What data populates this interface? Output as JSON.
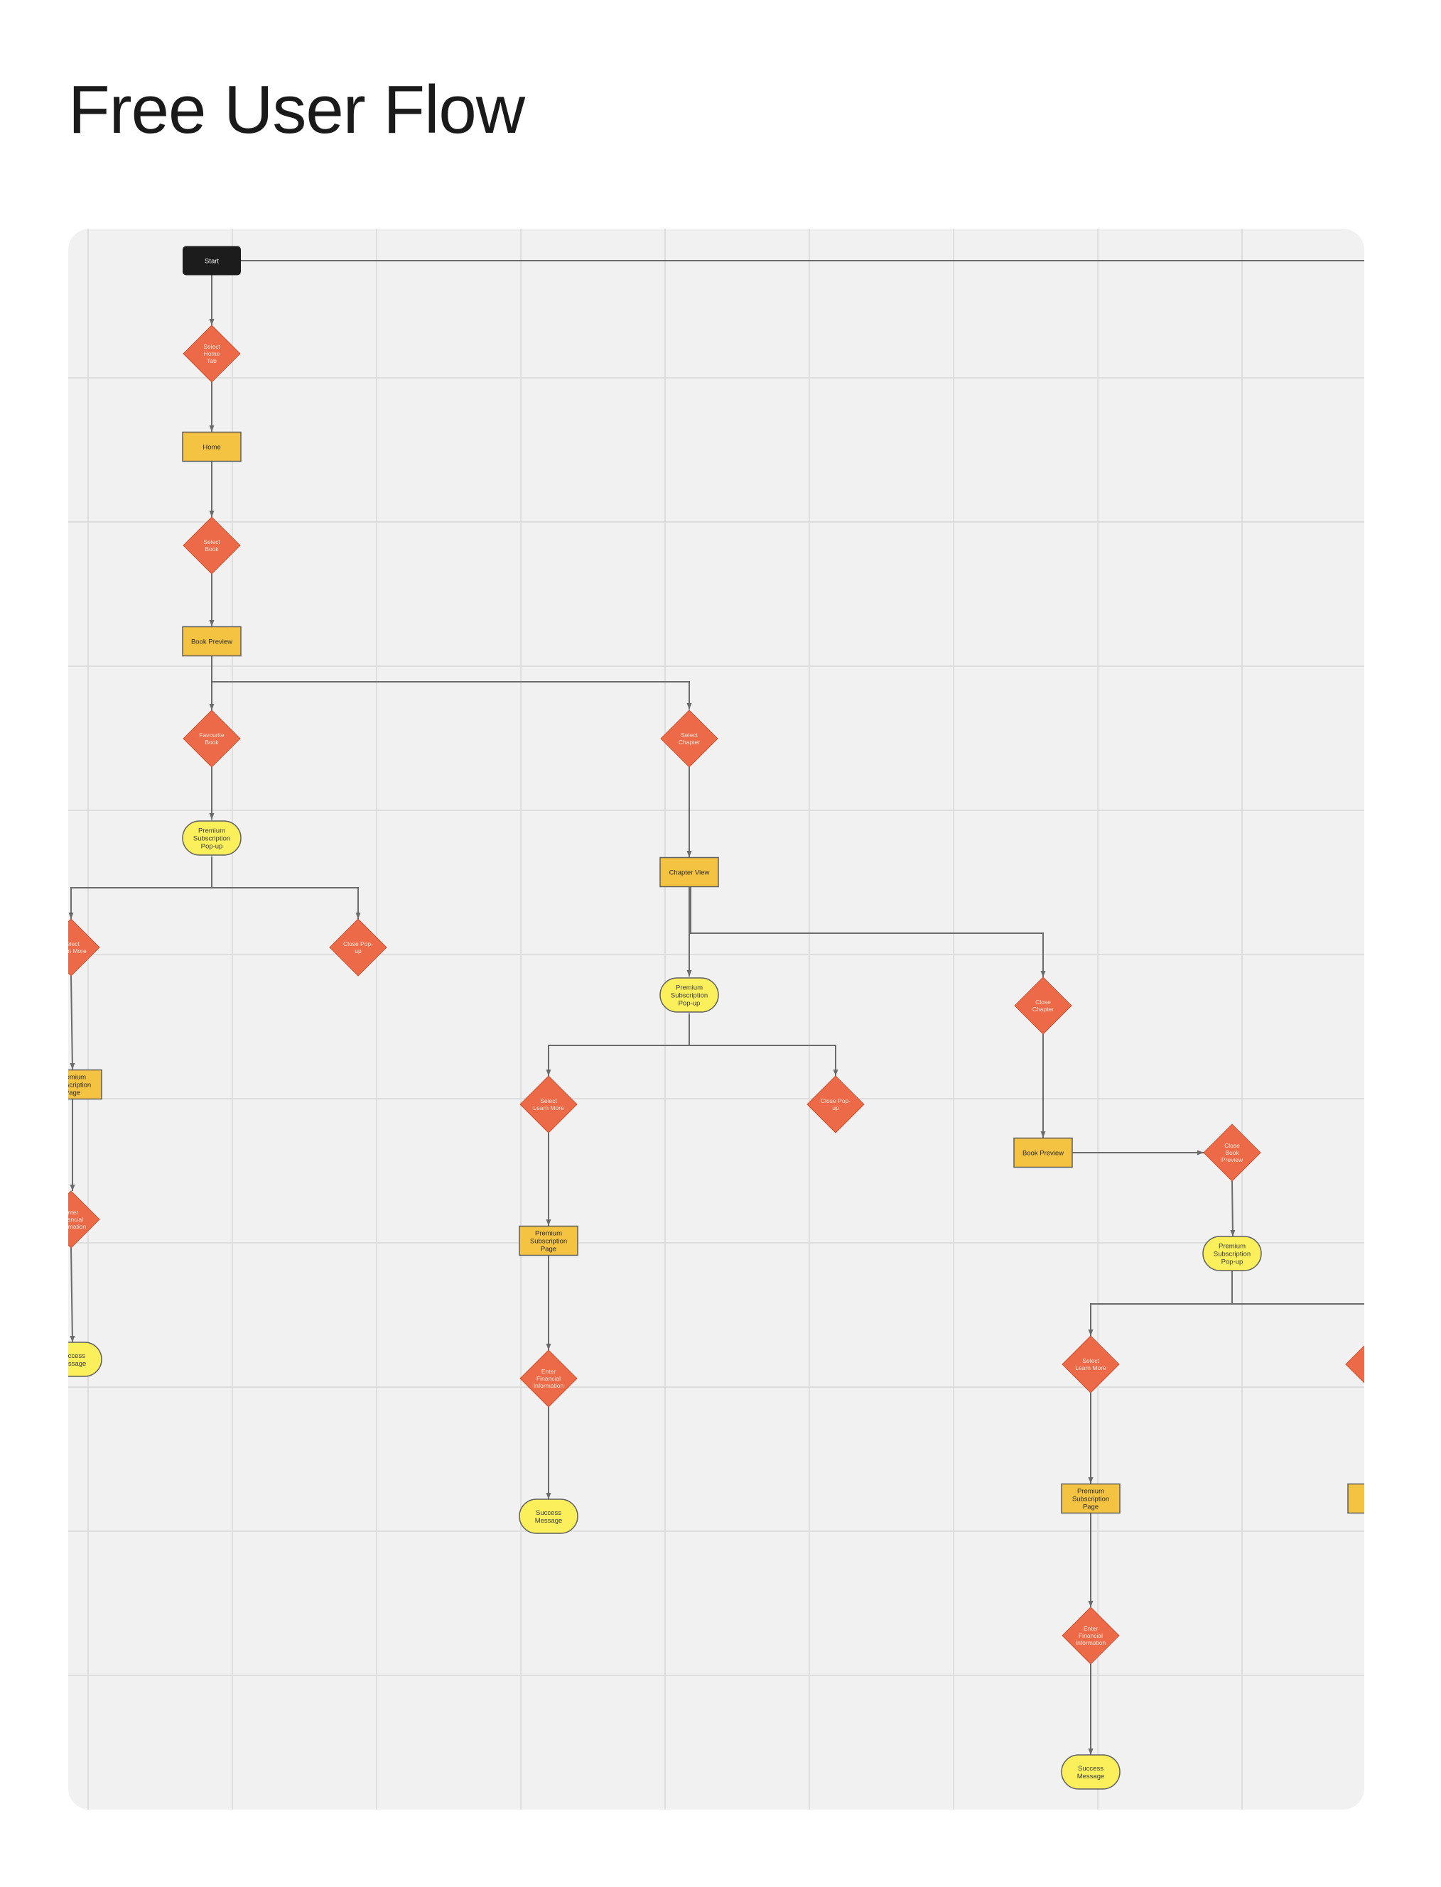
{
  "page": {
    "title": "Free User Flow"
  },
  "diagram": {
    "nodes": [
      {
        "id": "start",
        "shape": "terminal-dark",
        "label": "Start"
      },
      {
        "id": "select-home-tab",
        "shape": "decision",
        "label": "Select\nHome\nTab"
      },
      {
        "id": "home",
        "shape": "process",
        "label": "Home"
      },
      {
        "id": "select-book",
        "shape": "decision",
        "label": "Select\nBook"
      },
      {
        "id": "book-preview-1",
        "shape": "process",
        "label": "Book Preview"
      },
      {
        "id": "favourite-book",
        "shape": "decision",
        "label": "Favourite\nBook"
      },
      {
        "id": "select-chapter",
        "shape": "decision",
        "label": "Select\nChapter"
      },
      {
        "id": "popup-1",
        "shape": "terminal",
        "label": "Premium\nSubscription\nPop-up"
      },
      {
        "id": "chapter-view",
        "shape": "process",
        "label": "Chapter View"
      },
      {
        "id": "select-learn-more-1",
        "shape": "decision",
        "label": "Select\nLearn More"
      },
      {
        "id": "close-popup-1",
        "shape": "decision",
        "label": "Close Pop-\nup"
      },
      {
        "id": "popup-2",
        "shape": "terminal",
        "label": "Premium\nSubscription\nPop-up"
      },
      {
        "id": "close-chapter",
        "shape": "decision",
        "label": "Close\nChapter"
      },
      {
        "id": "sub-page-1",
        "shape": "process",
        "label": "Premium\nSubscription\nPage"
      },
      {
        "id": "select-learn-more-2",
        "shape": "decision",
        "label": "Select\nLearn More"
      },
      {
        "id": "close-popup-2",
        "shape": "decision",
        "label": "Close Pop-\nup"
      },
      {
        "id": "book-preview-2",
        "shape": "process",
        "label": "Book Preview"
      },
      {
        "id": "close-book-preview",
        "shape": "decision",
        "label": "Close\nBook\nPreview"
      },
      {
        "id": "enter-info-1",
        "shape": "decision",
        "label": "Enter\nFinancial\nInformation"
      },
      {
        "id": "sub-page-2",
        "shape": "process",
        "label": "Premium\nSubscription\nPage"
      },
      {
        "id": "popup-3",
        "shape": "terminal",
        "label": "Premium\nSubscription\nPop-up"
      },
      {
        "id": "success-1",
        "shape": "terminal",
        "label": "Success\nMessage"
      },
      {
        "id": "select-learn-more-3",
        "shape": "decision",
        "label": "Select\nLearn More"
      },
      {
        "id": "decision-offscreen",
        "shape": "decision",
        "label": ""
      },
      {
        "id": "enter-info-2",
        "shape": "decision",
        "label": "Enter\nFinancial\nInformation"
      },
      {
        "id": "success-2",
        "shape": "terminal",
        "label": "Success\nMessage"
      },
      {
        "id": "sub-page-3",
        "shape": "process",
        "label": "Premium\nSubscription\nPage"
      },
      {
        "id": "process-offscreen",
        "shape": "process",
        "label": ""
      },
      {
        "id": "enter-info-3",
        "shape": "decision",
        "label": "Enter\nFinancial\nInformation"
      },
      {
        "id": "success-3",
        "shape": "terminal",
        "label": "Success\nMessage"
      }
    ],
    "colors": {
      "canvas": "#f1f1f1",
      "grid": "#dedede",
      "decision": "#ec6a47",
      "decision_text": "#ffe7de",
      "process": "#f4c342",
      "terminal": "#fbef5c",
      "terminal_dark": "#1c1c1c",
      "connector": "#6b6b6b",
      "border": "#5f5f5f"
    }
  }
}
